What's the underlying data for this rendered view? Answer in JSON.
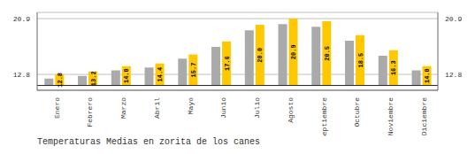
{
  "chart_data": {
    "type": "bar",
    "title": "Temperaturas Medias en zorita de los canes",
    "categories": [
      "Enero",
      "Febrero",
      "Marzo",
      "Abril",
      "Mayo",
      "Junio",
      "Julio",
      "Agosto",
      "Septiembre",
      "Octubre",
      "Noviembre",
      "Diciembre"
    ],
    "series": [
      {
        "color": "#AAAAAA",
        "values": [
          12.2,
          12.6,
          13.4,
          13.8,
          15.1,
          16.8,
          19.2,
          20.1,
          19.7,
          17.7,
          15.5,
          13.4
        ]
      },
      {
        "color": "#FFC800",
        "values": [
          12.8,
          13.2,
          14.0,
          14.4,
          15.7,
          17.6,
          20.0,
          20.9,
          20.5,
          18.5,
          16.3,
          14.0
        ],
        "value_labels": [
          "12.8",
          "13.2",
          "14.0",
          "14.4",
          "15.7",
          "17.6",
          "20.0",
          "20.9",
          "20.5",
          "18.5",
          "16.3",
          "14.0"
        ],
        "data_labels": true
      }
    ],
    "baseline": 11.2,
    "ylim": [
      10.5,
      21.8
    ],
    "yticks": [
      12.8,
      20.9
    ],
    "grid": true
  }
}
